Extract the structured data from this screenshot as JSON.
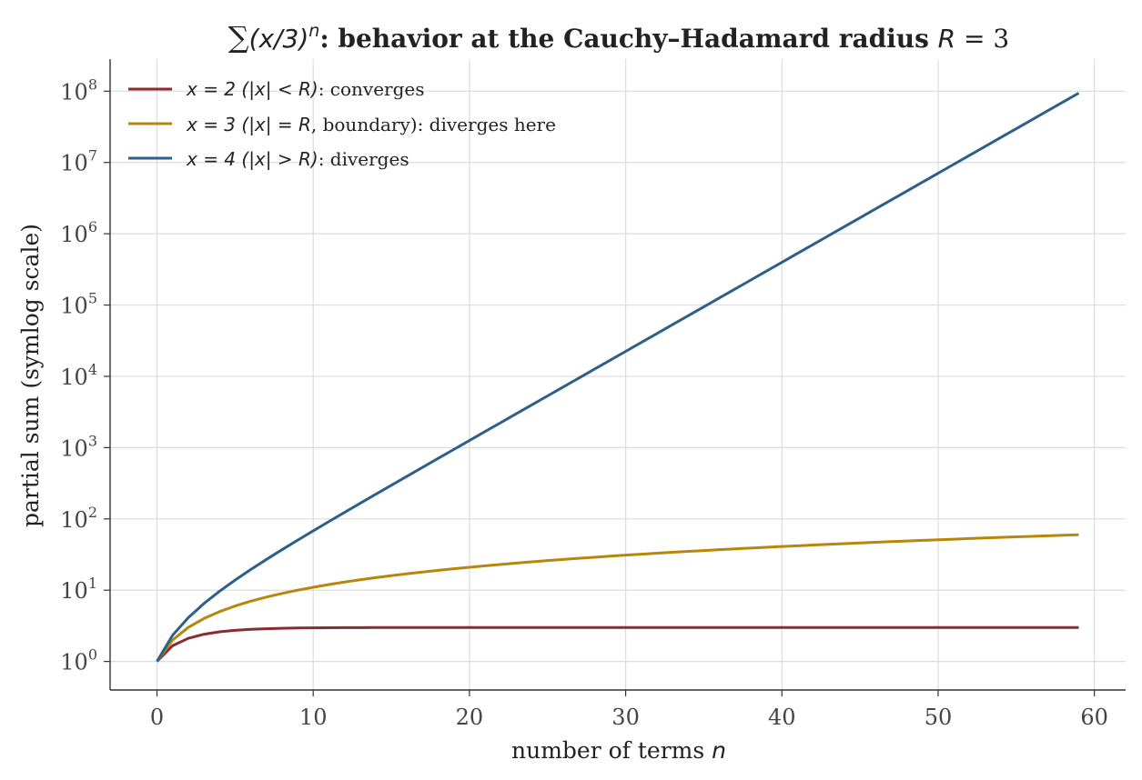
{
  "chart_data": {
    "type": "line",
    "title": "∑(x/3)ⁿ: behavior at the Cauchy–Hadamard radius R = 3",
    "title_parts": {
      "sum_symbol": "∑",
      "math": "(x/3)",
      "exponent": "n",
      "text": ": behavior at the Cauchy–Hadamard radius ",
      "R_var": "R",
      "R_value": " = 3"
    },
    "xlabel": "number of terms n",
    "xlabel_parts": {
      "text": "number of terms ",
      "var": "n"
    },
    "ylabel": "partial sum (symlog scale)",
    "yscale": "symlog",
    "xlim": [
      -3,
      62
    ],
    "ylim_exponent": [
      -0.4,
      8.45
    ],
    "xticks": [
      0,
      10,
      20,
      30,
      40,
      50,
      60
    ],
    "ytick_exponents": [
      0,
      1,
      2,
      3,
      4,
      5,
      6,
      7,
      8
    ],
    "ytick_base": "10",
    "grid": true,
    "legend_position": "top-left",
    "series": [
      {
        "name": "x = 2  (|x| < R): converges",
        "name_math": "x = 2  (|x| < R)",
        "name_text": ": converges",
        "color": "#8b2a2f",
        "ratio": 0.6666667,
        "x": [
          0,
          59
        ]
      },
      {
        "name": "x = 3  (|x| = R, boundary): diverges here",
        "name_math": "x = 3  (|x| = R",
        "name_text": ", boundary): diverges here",
        "color": "#b8860b",
        "ratio": 1.0,
        "x": [
          0,
          59
        ]
      },
      {
        "name": "x = 4  (|x| > R): diverges",
        "name_math": "x = 4  (|x| > R)",
        "name_text": ": diverges",
        "color": "#2e5f8a",
        "ratio": 1.3333333,
        "x": [
          0,
          59
        ]
      }
    ]
  }
}
